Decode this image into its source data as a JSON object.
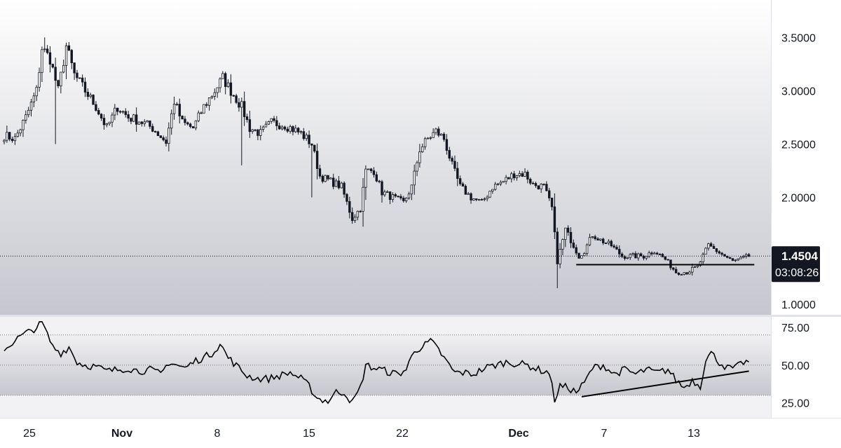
{
  "chart_data": [
    {
      "type": "candlestick",
      "title": "",
      "x_tick_labels": [
        "25",
        "Nov",
        "8",
        "15",
        "22",
        "Dec",
        "7",
        "13"
      ],
      "y_tick_labels": [
        "3.5000",
        "3.0000",
        "2.5000",
        "2.0000",
        "1.0000"
      ],
      "ylim": [
        0.9,
        3.85
      ],
      "grid": false,
      "last_price": {
        "value": 1.4504,
        "label": "1.4504",
        "countdown": "03:08:26"
      },
      "annotations": [
        {
          "type": "horizontal_segment",
          "y": 1.37,
          "x_start_bar": 212,
          "x_end_bar": 278
        }
      ],
      "anchors": [
        [
          0,
          2.58
        ],
        [
          4,
          2.55
        ],
        [
          8,
          2.75
        ],
        [
          12,
          3.0
        ],
        [
          14,
          3.4
        ],
        [
          17,
          3.3
        ],
        [
          20,
          3.0
        ],
        [
          23,
          3.42
        ],
        [
          26,
          3.15
        ],
        [
          30,
          3.0
        ],
        [
          34,
          2.85
        ],
        [
          38,
          2.65
        ],
        [
          42,
          2.85
        ],
        [
          46,
          2.75
        ],
        [
          50,
          2.72
        ],
        [
          55,
          2.65
        ],
        [
          60,
          2.52
        ],
        [
          63,
          2.9
        ],
        [
          66,
          2.7
        ],
        [
          70,
          2.65
        ],
        [
          74,
          2.85
        ],
        [
          78,
          3.0
        ],
        [
          81,
          3.12
        ],
        [
          84,
          3.0
        ],
        [
          88,
          2.85
        ],
        [
          91,
          2.65
        ],
        [
          95,
          2.6
        ],
        [
          99,
          2.7
        ],
        [
          104,
          2.68
        ],
        [
          110,
          2.6
        ],
        [
          114,
          2.5
        ],
        [
          117,
          2.2
        ],
        [
          121,
          2.15
        ],
        [
          125,
          2.1
        ],
        [
          129,
          1.8
        ],
        [
          132,
          1.9
        ],
        [
          134,
          2.25
        ],
        [
          137,
          2.25
        ],
        [
          140,
          2.05
        ],
        [
          144,
          2.0
        ],
        [
          148,
          1.95
        ],
        [
          151,
          2.1
        ],
        [
          154,
          2.45
        ],
        [
          157,
          2.55
        ],
        [
          160,
          2.62
        ],
        [
          163,
          2.55
        ],
        [
          166,
          2.3
        ],
        [
          169,
          2.1
        ],
        [
          173,
          2.0
        ],
        [
          177,
          1.95
        ],
        [
          181,
          2.1
        ],
        [
          185,
          2.15
        ],
        [
          189,
          2.22
        ],
        [
          193,
          2.22
        ],
        [
          196,
          2.12
        ],
        [
          200,
          2.1
        ],
        [
          203,
          1.9
        ],
        [
          205,
          1.4
        ],
        [
          208,
          1.7
        ],
        [
          210,
          1.6
        ],
        [
          213,
          1.45
        ],
        [
          215,
          1.5
        ],
        [
          218,
          1.65
        ],
        [
          221,
          1.6
        ],
        [
          225,
          1.55
        ],
        [
          229,
          1.45
        ],
        [
          233,
          1.45
        ],
        [
          237,
          1.45
        ],
        [
          241,
          1.5
        ],
        [
          245,
          1.42
        ],
        [
          249,
          1.3
        ],
        [
          253,
          1.3
        ],
        [
          257,
          1.35
        ],
        [
          259,
          1.45
        ],
        [
          261,
          1.55
        ],
        [
          264,
          1.5
        ],
        [
          267,
          1.45
        ],
        [
          270,
          1.4
        ],
        [
          273,
          1.42
        ],
        [
          276,
          1.45
        ]
      ],
      "series_count_bars": 277
    },
    {
      "type": "line",
      "title": "",
      "y_tick_labels": [
        "75.00",
        "50.00",
        "25.00"
      ],
      "ylim": [
        15,
        82
      ],
      "bands": [
        70,
        50,
        30
      ],
      "annotations": [
        {
          "type": "trendline",
          "from": [
            214,
            29
          ],
          "to": [
            276,
            46
          ]
        }
      ],
      "anchors": [
        [
          0,
          60
        ],
        [
          3,
          65
        ],
        [
          6,
          69
        ],
        [
          9,
          72
        ],
        [
          12,
          75
        ],
        [
          14,
          78
        ],
        [
          16,
          70
        ],
        [
          18,
          62
        ],
        [
          21,
          58
        ],
        [
          24,
          62
        ],
        [
          27,
          52
        ],
        [
          30,
          50
        ],
        [
          34,
          49
        ],
        [
          38,
          46
        ],
        [
          42,
          47
        ],
        [
          46,
          48
        ],
        [
          50,
          46
        ],
        [
          54,
          47
        ],
        [
          58,
          44
        ],
        [
          61,
          52
        ],
        [
          64,
          50
        ],
        [
          67,
          48
        ],
        [
          71,
          53
        ],
        [
          74,
          55
        ],
        [
          77,
          58
        ],
        [
          80,
          64
        ],
        [
          83,
          55
        ],
        [
          87,
          48
        ],
        [
          90,
          43
        ],
        [
          94,
          41
        ],
        [
          98,
          41
        ],
        [
          102,
          43
        ],
        [
          106,
          45
        ],
        [
          110,
          41
        ],
        [
          113,
          36
        ],
        [
          116,
          28
        ],
        [
          120,
          26
        ],
        [
          123,
          32
        ],
        [
          126,
          32
        ],
        [
          129,
          25
        ],
        [
          132,
          35
        ],
        [
          134,
          50
        ],
        [
          137,
          48
        ],
        [
          140,
          47
        ],
        [
          143,
          45
        ],
        [
          146,
          44
        ],
        [
          149,
          47
        ],
        [
          152,
          60
        ],
        [
          155,
          62
        ],
        [
          158,
          66
        ],
        [
          161,
          60
        ],
        [
          164,
          52
        ],
        [
          167,
          45
        ],
        [
          170,
          45
        ],
        [
          174,
          44
        ],
        [
          178,
          48
        ],
        [
          182,
          50
        ],
        [
          186,
          52
        ],
        [
          190,
          51
        ],
        [
          194,
          50
        ],
        [
          198,
          47
        ],
        [
          202,
          45
        ],
        [
          204,
          27
        ],
        [
          206,
          36
        ],
        [
          209,
          35
        ],
        [
          212,
          32
        ],
        [
          215,
          38
        ],
        [
          218,
          48
        ],
        [
          222,
          50
        ],
        [
          226,
          44
        ],
        [
          230,
          47
        ],
        [
          234,
          44
        ],
        [
          238,
          47
        ],
        [
          242,
          45
        ],
        [
          246,
          47
        ],
        [
          249,
          40
        ],
        [
          252,
          35
        ],
        [
          255,
          40
        ],
        [
          258,
          36
        ],
        [
          260,
          54
        ],
        [
          262,
          58
        ],
        [
          265,
          52
        ],
        [
          268,
          48
        ],
        [
          271,
          48
        ],
        [
          274,
          52
        ]
      ]
    }
  ]
}
